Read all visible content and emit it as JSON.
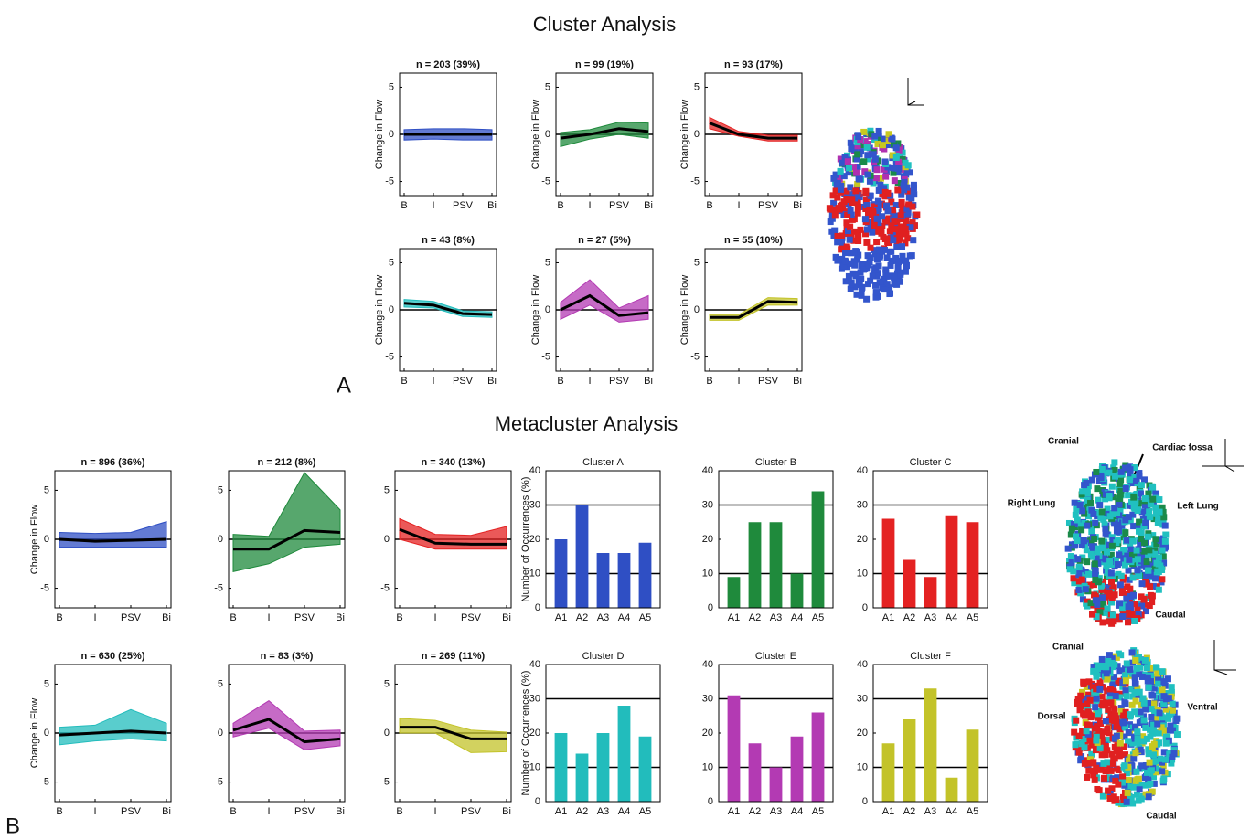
{
  "sections": [
    {
      "label": "A",
      "title": "Cluster Analysis"
    },
    {
      "label": "B",
      "title": "Metacluster Analysis"
    }
  ],
  "annotations": [
    "Cranial",
    "Cardiac fossa",
    "Right Lung",
    "Left Lung",
    "Caudal",
    "Cranial",
    "Dorsal",
    "Ventral",
    "Caudal"
  ],
  "chart_data": [
    {
      "type": "line",
      "title": "n = 203 (39%)",
      "ylabel": "Change in Flow",
      "categories": [
        "B",
        "I",
        "PSV",
        "Bi"
      ],
      "values": [
        0,
        0,
        0,
        0
      ],
      "low": [
        -0.6,
        -0.5,
        -0.6,
        -0.6
      ],
      "high": [
        0.5,
        0.6,
        0.6,
        0.5
      ],
      "color": "#2f4fc4",
      "ylim": [
        -6.5,
        6.5
      ],
      "yticks": [
        -5,
        0,
        5
      ]
    },
    {
      "type": "line",
      "title": "n = 99 (19%)",
      "ylabel": "Change in Flow",
      "categories": [
        "B",
        "I",
        "PSV",
        "Bi"
      ],
      "values": [
        -0.4,
        0,
        0.6,
        0.3
      ],
      "low": [
        -1.3,
        -0.5,
        0,
        -0.4
      ],
      "high": [
        0.2,
        0.5,
        1.3,
        1.2
      ],
      "color": "#1f8a3c",
      "ylim": [
        -6.5,
        6.5
      ],
      "yticks": [
        -5,
        0,
        5
      ]
    },
    {
      "type": "line",
      "title": "n = 93 (17%)",
      "ylabel": "Change in Flow",
      "categories": [
        "B",
        "I",
        "PSV",
        "Bi"
      ],
      "values": [
        1.2,
        0,
        -0.4,
        -0.4
      ],
      "low": [
        0.6,
        -0.2,
        -0.7,
        -0.7
      ],
      "high": [
        1.8,
        0.3,
        -0.1,
        -0.1
      ],
      "color": "#e42222",
      "ylim": [
        -6.5,
        6.5
      ],
      "yticks": [
        -5,
        0,
        5
      ]
    },
    {
      "type": "line",
      "title": "n = 43 (8%)",
      "ylabel": "Change in Flow",
      "categories": [
        "B",
        "I",
        "PSV",
        "Bi"
      ],
      "values": [
        0.7,
        0.5,
        -0.4,
        -0.5
      ],
      "low": [
        0.3,
        0.2,
        -0.7,
        -0.8
      ],
      "high": [
        1.1,
        0.9,
        -0.1,
        -0.2
      ],
      "color": "#22bcbc",
      "ylim": [
        -6.5,
        6.5
      ],
      "yticks": [
        -5,
        0,
        5
      ]
    },
    {
      "type": "line",
      "title": "n = 27 (5%)",
      "ylabel": "Change in Flow",
      "categories": [
        "B",
        "I",
        "PSV",
        "Bi"
      ],
      "values": [
        0,
        1.5,
        -0.6,
        -0.3
      ],
      "low": [
        -1,
        0.5,
        -1.3,
        -1
      ],
      "high": [
        0.8,
        3.2,
        0.2,
        1.5
      ],
      "color": "#b33ab3",
      "ylim": [
        -6.5,
        6.5
      ],
      "yticks": [
        -5,
        0,
        5
      ]
    },
    {
      "type": "line",
      "title": "n = 55 (10%)",
      "ylabel": "Change in Flow",
      "categories": [
        "B",
        "I",
        "PSV",
        "Bi"
      ],
      "values": [
        -0.8,
        -0.8,
        0.9,
        0.8
      ],
      "low": [
        -1.1,
        -1.1,
        0.5,
        0.5
      ],
      "high": [
        -0.5,
        -0.5,
        1.3,
        1.2
      ],
      "color": "#c3c329",
      "ylim": [
        -6.5,
        6.5
      ],
      "yticks": [
        -5,
        0,
        5
      ]
    },
    {
      "type": "line",
      "title": "n = 896 (36%)",
      "ylabel": "Change in Flow",
      "categories": [
        "B",
        "I",
        "PSV",
        "Bi"
      ],
      "values": [
        0,
        -0.2,
        -0.1,
        0
      ],
      "low": [
        -0.8,
        -0.8,
        -0.8,
        -0.8
      ],
      "high": [
        0.7,
        0.6,
        0.7,
        1.8
      ],
      "color": "#2f4fc4",
      "ylim": [
        -7,
        7
      ],
      "yticks": [
        -5,
        0,
        5
      ]
    },
    {
      "type": "line",
      "title": "n = 212 (8%)",
      "categories": [
        "B",
        "I",
        "PSV",
        "Bi"
      ],
      "values": [
        -1,
        -1,
        0.9,
        0.7
      ],
      "low": [
        -3.3,
        -2.5,
        -0.8,
        -0.5
      ],
      "high": [
        0.5,
        0.3,
        6.8,
        3
      ],
      "color": "#1f8a3c",
      "ylim": [
        -7,
        7
      ],
      "yticks": [
        -5,
        0,
        5
      ]
    },
    {
      "type": "line",
      "title": "n = 340 (13%)",
      "categories": [
        "B",
        "I",
        "PSV",
        "Bi"
      ],
      "values": [
        1,
        -0.4,
        -0.5,
        -0.5
      ],
      "low": [
        0,
        -1,
        -1,
        -1
      ],
      "high": [
        2.1,
        0.5,
        0.4,
        1.3
      ],
      "color": "#e42222",
      "ylim": [
        -7,
        7
      ],
      "yticks": [
        -5,
        0,
        5
      ]
    },
    {
      "type": "line",
      "title": "n = 630 (25%)",
      "ylabel": "Change in Flow",
      "categories": [
        "B",
        "I",
        "PSV",
        "Bi"
      ],
      "values": [
        -0.2,
        0,
        0.2,
        0
      ],
      "low": [
        -1.2,
        -0.8,
        -0.6,
        -0.8
      ],
      "high": [
        0.6,
        0.8,
        2.4,
        1
      ],
      "color": "#22bcbc",
      "ylim": [
        -7,
        7
      ],
      "yticks": [
        -5,
        0,
        5
      ]
    },
    {
      "type": "line",
      "title": "n = 83 (3%)",
      "categories": [
        "B",
        "I",
        "PSV",
        "Bi"
      ],
      "values": [
        0.3,
        1.4,
        -0.9,
        -0.6
      ],
      "low": [
        -0.4,
        0.5,
        -1.7,
        -1.3
      ],
      "high": [
        1,
        3.3,
        0.2,
        0.3
      ],
      "color": "#b33ab3",
      "ylim": [
        -7,
        7
      ],
      "yticks": [
        -5,
        0,
        5
      ]
    },
    {
      "type": "line",
      "title": "n = 269 (11%)",
      "categories": [
        "B",
        "I",
        "PSV",
        "Bi"
      ],
      "values": [
        0.6,
        0.6,
        -0.6,
        -0.6
      ],
      "low": [
        0,
        0,
        -2,
        -1.9
      ],
      "high": [
        1.5,
        1.3,
        0.3,
        0.1
      ],
      "color": "#c3c329",
      "ylim": [
        -7,
        7
      ],
      "yticks": [
        -5,
        0,
        5
      ]
    },
    {
      "type": "bar",
      "title": "Cluster A",
      "ylabel": "Number of Occurrences (%)",
      "categories": [
        "A1",
        "A2",
        "A3",
        "A4",
        "A5"
      ],
      "values": [
        20,
        30,
        16,
        16,
        19
      ],
      "color": "#2f4fc4",
      "ylim": [
        0,
        40
      ],
      "yticks": [
        0,
        10,
        20,
        30,
        40
      ],
      "reference_lines": [
        10,
        30
      ]
    },
    {
      "type": "bar",
      "title": "Cluster B",
      "categories": [
        "A1",
        "A2",
        "A3",
        "A4",
        "A5"
      ],
      "values": [
        9,
        25,
        25,
        10,
        34
      ],
      "color": "#1f8a3c",
      "ylim": [
        0,
        40
      ],
      "yticks": [
        0,
        10,
        20,
        30,
        40
      ],
      "reference_lines": [
        10,
        30
      ]
    },
    {
      "type": "bar",
      "title": "Cluster C",
      "categories": [
        "A1",
        "A2",
        "A3",
        "A4",
        "A5"
      ],
      "values": [
        26,
        14,
        9,
        27,
        25
      ],
      "color": "#e42222",
      "ylim": [
        0,
        40
      ],
      "yticks": [
        0,
        10,
        20,
        30,
        40
      ],
      "reference_lines": [
        10,
        30
      ]
    },
    {
      "type": "bar",
      "title": "Cluster D",
      "ylabel": "Number of Occurrences (%)",
      "categories": [
        "A1",
        "A2",
        "A3",
        "A4",
        "A5"
      ],
      "values": [
        20,
        14,
        20,
        28,
        19
      ],
      "color": "#22bcbc",
      "ylim": [
        0,
        40
      ],
      "yticks": [
        0,
        10,
        20,
        30,
        40
      ],
      "reference_lines": [
        10,
        30
      ]
    },
    {
      "type": "bar",
      "title": "Cluster E",
      "categories": [
        "A1",
        "A2",
        "A3",
        "A4",
        "A5"
      ],
      "values": [
        31,
        17,
        10,
        19,
        26
      ],
      "color": "#b33ab3",
      "ylim": [
        0,
        40
      ],
      "yticks": [
        0,
        10,
        20,
        30,
        40
      ],
      "reference_lines": [
        10,
        30
      ]
    },
    {
      "type": "bar",
      "title": "Cluster F",
      "categories": [
        "A1",
        "A2",
        "A3",
        "A4",
        "A5"
      ],
      "values": [
        17,
        24,
        33,
        7,
        21
      ],
      "color": "#c3c329",
      "ylim": [
        0,
        40
      ],
      "yticks": [
        0,
        10,
        20,
        30,
        40
      ],
      "reference_lines": [
        10,
        30
      ]
    }
  ]
}
